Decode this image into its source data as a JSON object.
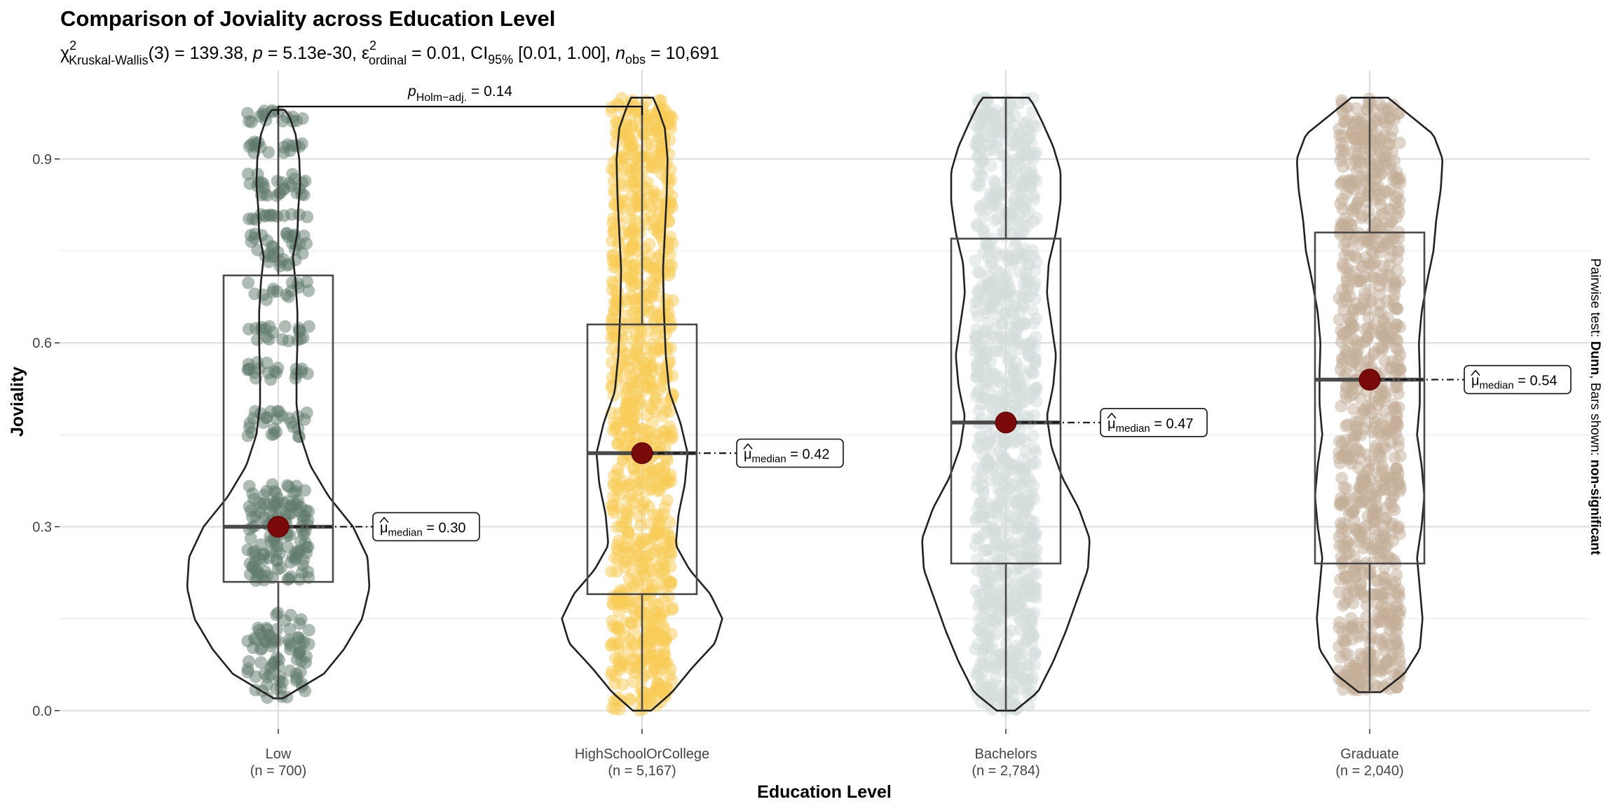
{
  "title": "Comparison of Joviality across Education Level",
  "subtitle": {
    "chi": "χ",
    "chi_sup": "2",
    "chi_sub": "Kruskal-Wallis",
    "df": "(3) = 139.38, ",
    "p_sym": "p",
    "p_val": " = 5.13e-30, ",
    "eps": "ε",
    "eps_sup": "2",
    "eps_sub": "ordinal",
    "eps_val": " = 0.01, CI",
    "ci_sub": "95%",
    "ci_val": " [0.01, 1.00], ",
    "n_sym": "n",
    "n_sub": "obs",
    "n_val": " = 10,691"
  },
  "pairwise_note": {
    "prefix": "Pairwise test: ",
    "test": "Dunn",
    "middle": ", Bars shown: ",
    "shown": "non-significant"
  },
  "comparison": {
    "p_sym": "p",
    "p_sub": "Holm−adj.",
    "p_val": " = 0.14",
    "from": "Low",
    "to": "HighSchoolOrCollege"
  },
  "chart_data": {
    "type": "violin+box+jitter",
    "xlabel": "Education Level",
    "ylabel": "Joviality",
    "ylim": [
      -0.03,
      1.045
    ],
    "yticks": [
      0.0,
      0.3,
      0.6,
      0.9
    ],
    "ytick_labels": [
      "0.0",
      "0.3",
      "0.6",
      "0.9"
    ],
    "grid": true,
    "groups": [
      {
        "name": "Low",
        "n_label": "(n = 700)",
        "color": "#5f7a6c",
        "min": 0.02,
        "max": 0.98,
        "q1": 0.21,
        "median": 0.3,
        "q3": 0.71,
        "median_label_mu": "μ",
        "median_label_sub": "median",
        "median_label_val": " = 0.30",
        "density": [
          [
            0.02,
            0.05
          ],
          [
            0.06,
            0.5
          ],
          [
            0.1,
            0.72
          ],
          [
            0.15,
            0.92
          ],
          [
            0.2,
            1.0
          ],
          [
            0.25,
            0.98
          ],
          [
            0.3,
            0.82
          ],
          [
            0.35,
            0.55
          ],
          [
            0.4,
            0.35
          ],
          [
            0.45,
            0.24
          ],
          [
            0.5,
            0.2
          ],
          [
            0.55,
            0.2
          ],
          [
            0.6,
            0.21
          ],
          [
            0.65,
            0.21
          ],
          [
            0.7,
            0.19
          ],
          [
            0.74,
            0.16
          ],
          [
            0.78,
            0.21
          ],
          [
            0.82,
            0.22
          ],
          [
            0.86,
            0.24
          ],
          [
            0.9,
            0.23
          ],
          [
            0.94,
            0.19
          ],
          [
            0.97,
            0.12
          ],
          [
            0.98,
            0.07
          ]
        ],
        "bands": [
          [
            0.02,
            0.16,
            0.55
          ],
          [
            0.21,
            0.37,
            0.85
          ],
          [
            0.44,
            0.49,
            0.35
          ],
          [
            0.54,
            0.57,
            0.3
          ],
          [
            0.6,
            0.63,
            0.3
          ],
          [
            0.67,
            0.7,
            0.1
          ],
          [
            0.72,
            0.78,
            0.4
          ],
          [
            0.8,
            0.81,
            0.2
          ],
          [
            0.84,
            0.88,
            0.45
          ],
          [
            0.91,
            0.93,
            0.25
          ],
          [
            0.96,
            0.98,
            0.25
          ]
        ]
      },
      {
        "name": "HighSchoolOrCollege",
        "n_label": "(n = 5,167)",
        "color": "#f8cc56",
        "min": 0.0,
        "max": 1.0,
        "q1": 0.19,
        "median": 0.42,
        "q3": 0.63,
        "median_label_mu": "μ",
        "median_label_sub": "median",
        "median_label_val": " = 0.42",
        "density": [
          [
            0.0,
            0.1
          ],
          [
            0.03,
            0.33
          ],
          [
            0.07,
            0.55
          ],
          [
            0.11,
            0.8
          ],
          [
            0.15,
            0.88
          ],
          [
            0.19,
            0.75
          ],
          [
            0.23,
            0.52
          ],
          [
            0.27,
            0.37
          ],
          [
            0.32,
            0.4
          ],
          [
            0.37,
            0.47
          ],
          [
            0.42,
            0.5
          ],
          [
            0.47,
            0.42
          ],
          [
            0.52,
            0.3
          ],
          [
            0.58,
            0.26
          ],
          [
            0.65,
            0.24
          ],
          [
            0.72,
            0.23
          ],
          [
            0.78,
            0.25
          ],
          [
            0.84,
            0.27
          ],
          [
            0.9,
            0.28
          ],
          [
            0.95,
            0.25
          ],
          [
            0.98,
            0.18
          ],
          [
            1.0,
            0.12
          ]
        ],
        "bands": [
          [
            0.0,
            1.0,
            1.0
          ]
        ]
      },
      {
        "name": "Bachelors",
        "n_label": "(n = 2,784)",
        "color": "#d3dcdb",
        "min": 0.0,
        "max": 1.0,
        "q1": 0.24,
        "median": 0.47,
        "q3": 0.77,
        "median_label_mu": "μ",
        "median_label_sub": "median",
        "median_label_val": " = 0.47",
        "density": [
          [
            0.0,
            0.1
          ],
          [
            0.03,
            0.35
          ],
          [
            0.08,
            0.52
          ],
          [
            0.13,
            0.66
          ],
          [
            0.18,
            0.78
          ],
          [
            0.23,
            0.9
          ],
          [
            0.28,
            0.92
          ],
          [
            0.33,
            0.8
          ],
          [
            0.38,
            0.62
          ],
          [
            0.43,
            0.5
          ],
          [
            0.48,
            0.45
          ],
          [
            0.53,
            0.52
          ],
          [
            0.58,
            0.55
          ],
          [
            0.63,
            0.5
          ],
          [
            0.68,
            0.45
          ],
          [
            0.73,
            0.47
          ],
          [
            0.78,
            0.55
          ],
          [
            0.83,
            0.6
          ],
          [
            0.88,
            0.6
          ],
          [
            0.92,
            0.52
          ],
          [
            0.96,
            0.4
          ],
          [
            0.99,
            0.3
          ],
          [
            1.0,
            0.25
          ]
        ],
        "bands": [
          [
            0.0,
            1.0,
            1.0
          ]
        ]
      },
      {
        "name": "Graduate",
        "n_label": "(n = 2,040)",
        "color": "#c4ad97",
        "min": 0.03,
        "max": 1.0,
        "q1": 0.24,
        "median": 0.54,
        "q3": 0.78,
        "median_label_mu": "μ",
        "median_label_sub": "median",
        "median_label_val": " = 0.54",
        "density": [
          [
            0.03,
            0.12
          ],
          [
            0.06,
            0.38
          ],
          [
            0.1,
            0.55
          ],
          [
            0.15,
            0.58
          ],
          [
            0.2,
            0.55
          ],
          [
            0.25,
            0.52
          ],
          [
            0.3,
            0.57
          ],
          [
            0.35,
            0.6
          ],
          [
            0.4,
            0.57
          ],
          [
            0.45,
            0.52
          ],
          [
            0.5,
            0.55
          ],
          [
            0.55,
            0.55
          ],
          [
            0.6,
            0.54
          ],
          [
            0.65,
            0.57
          ],
          [
            0.7,
            0.63
          ],
          [
            0.75,
            0.7
          ],
          [
            0.8,
            0.73
          ],
          [
            0.85,
            0.78
          ],
          [
            0.9,
            0.8
          ],
          [
            0.94,
            0.7
          ],
          [
            0.97,
            0.45
          ],
          [
            1.0,
            0.2
          ]
        ],
        "bands": [
          [
            0.03,
            1.0,
            1.0
          ]
        ]
      }
    ]
  }
}
